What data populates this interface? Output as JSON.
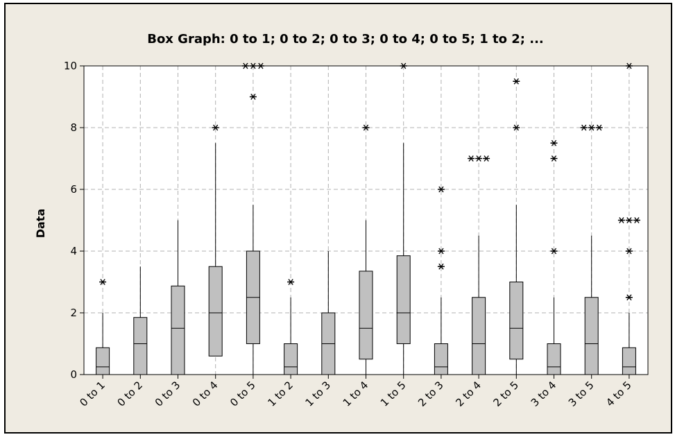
{
  "chart_data": {
    "type": "box",
    "title": "Box Graph: 0 to 1; 0 to 2; 0 to 3; 0 to 4; 0 to 5; 1 to 2; ...",
    "ylabel": "Data",
    "xlabel": "",
    "ylim": [
      0,
      10
    ],
    "yticks": [
      0,
      2,
      4,
      6,
      8,
      10
    ],
    "grid": true,
    "categories": [
      "0 to 1",
      "0 to 2",
      "0 to 3",
      "0 to 4",
      "0 to 5",
      "1 to 2",
      "1 to 3",
      "1 to 4",
      "1 to 5",
      "2 to 3",
      "2 to 4",
      "2 to 5",
      "3 to 4",
      "3 to 5",
      "4 to 5"
    ],
    "boxes": [
      {
        "min": 0,
        "q1": 0,
        "median": 0.25,
        "q3": 0.87,
        "max": 2,
        "outliers": [
          {
            "y": 3,
            "n": 1
          }
        ]
      },
      {
        "min": 0,
        "q1": 0,
        "median": 1,
        "q3": 1.85,
        "max": 3.5,
        "outliers": []
      },
      {
        "min": 0,
        "q1": 0,
        "median": 1.5,
        "q3": 2.87,
        "max": 5,
        "outliers": []
      },
      {
        "min": 0.6,
        "q1": 0.6,
        "median": 2,
        "q3": 3.5,
        "max": 7.5,
        "outliers": [
          {
            "y": 8,
            "n": 1
          }
        ]
      },
      {
        "min": 0,
        "q1": 1,
        "median": 2.5,
        "q3": 4,
        "max": 5.5,
        "outliers": [
          {
            "y": 9,
            "n": 1
          },
          {
            "y": 10,
            "n": 3
          }
        ]
      },
      {
        "min": 0,
        "q1": 0,
        "median": 0.25,
        "q3": 1,
        "max": 2.5,
        "outliers": [
          {
            "y": 3,
            "n": 1
          }
        ]
      },
      {
        "min": 0,
        "q1": 0,
        "median": 1,
        "q3": 2,
        "max": 4,
        "outliers": []
      },
      {
        "min": 0,
        "q1": 0.5,
        "median": 1.5,
        "q3": 3.35,
        "max": 5,
        "outliers": [
          {
            "y": 8,
            "n": 1
          }
        ]
      },
      {
        "min": 0,
        "q1": 1,
        "median": 2,
        "q3": 3.85,
        "max": 7.5,
        "outliers": [
          {
            "y": 10,
            "n": 1
          }
        ]
      },
      {
        "min": 0,
        "q1": 0,
        "median": 0.25,
        "q3": 1,
        "max": 2.5,
        "outliers": [
          {
            "y": 3.5,
            "n": 1
          },
          {
            "y": 4,
            "n": 1
          },
          {
            "y": 6,
            "n": 1
          }
        ]
      },
      {
        "min": 0,
        "q1": 0,
        "median": 1,
        "q3": 2.5,
        "max": 4.5,
        "outliers": [
          {
            "y": 7,
            "n": 3
          }
        ]
      },
      {
        "min": 0,
        "q1": 0.5,
        "median": 1.5,
        "q3": 3,
        "max": 5.5,
        "outliers": [
          {
            "y": 8,
            "n": 1
          },
          {
            "y": 9.5,
            "n": 1
          }
        ]
      },
      {
        "min": 0,
        "q1": 0,
        "median": 0.25,
        "q3": 1,
        "max": 2.5,
        "outliers": [
          {
            "y": 4,
            "n": 1
          },
          {
            "y": 7,
            "n": 1
          },
          {
            "y": 7.5,
            "n": 1
          }
        ]
      },
      {
        "min": 0,
        "q1": 0,
        "median": 1,
        "q3": 2.5,
        "max": 4.5,
        "outliers": [
          {
            "y": 8,
            "n": 3
          }
        ]
      },
      {
        "min": 0,
        "q1": 0,
        "median": 0.25,
        "q3": 0.87,
        "max": 2,
        "outliers": [
          {
            "y": 2.5,
            "n": 1
          },
          {
            "y": 4,
            "n": 1
          },
          {
            "y": 5,
            "n": 3
          },
          {
            "y": 10,
            "n": 1
          }
        ]
      }
    ],
    "colors": {
      "background": "#efebe2",
      "plot_area": "#ffffff",
      "box_fill": "#c0c0c0",
      "grid": "#b0b0b0",
      "ink": "#000000"
    }
  }
}
